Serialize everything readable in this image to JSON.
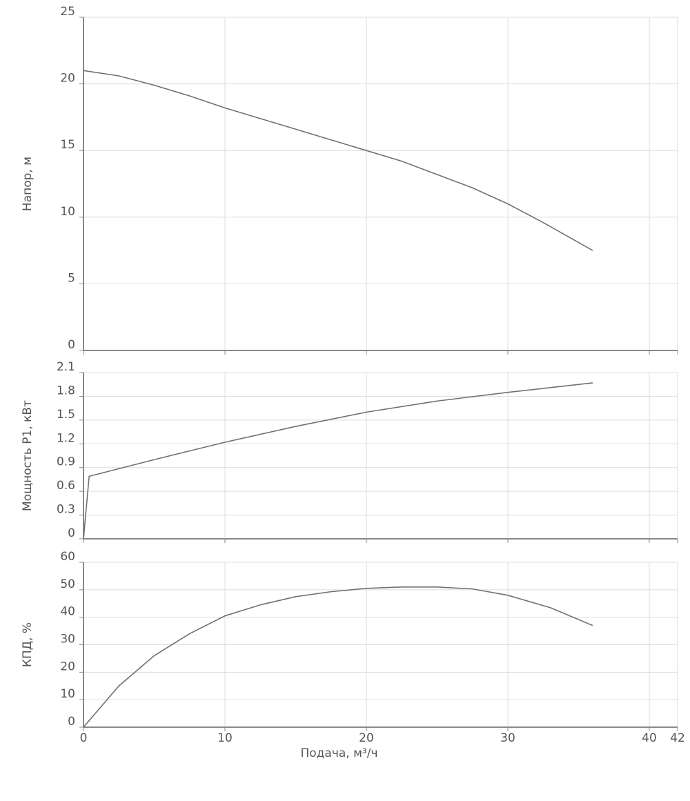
{
  "chart_data": [
    {
      "type": "line",
      "y_label": "Напор, м",
      "x": [
        0,
        2.5,
        5,
        7.5,
        10,
        12.5,
        15,
        17.5,
        20,
        22.5,
        25,
        27.5,
        30,
        32.5,
        36
      ],
      "values": [
        21,
        20.6,
        19.9,
        19.1,
        18.2,
        17.4,
        16.6,
        15.8,
        15,
        14.2,
        13.2,
        12.2,
        11,
        9.6,
        7.5
      ],
      "color": "#707070",
      "xlim": [
        0,
        42
      ],
      "xticks": [
        0,
        10,
        20,
        30,
        40,
        42
      ],
      "ylim": [
        0,
        25
      ],
      "yticks": [
        0,
        5,
        10,
        15,
        20,
        25
      ],
      "grid": true
    },
    {
      "type": "line",
      "y_label": "Мощность P1, кВт",
      "x": [
        0,
        0.4,
        5,
        10,
        15,
        20,
        25,
        30,
        36
      ],
      "values": [
        0,
        0.79,
        1.0,
        1.22,
        1.42,
        1.6,
        1.74,
        1.85,
        1.97
      ],
      "color": "#707070",
      "xlim": [
        0,
        42
      ],
      "xticks": [
        0,
        10,
        20,
        30,
        40,
        42
      ],
      "ylim": [
        0,
        2.1
      ],
      "yticks": [
        0,
        0.3,
        0.6,
        0.9,
        1.2,
        1.5,
        1.8,
        2.1
      ],
      "grid": true
    },
    {
      "type": "line",
      "y_label": "КПД, %",
      "x_label": "Подача, м³/ч",
      "x": [
        0,
        2.5,
        5,
        7.5,
        10,
        12.5,
        15,
        17.5,
        20,
        22.5,
        25,
        27.5,
        30,
        33,
        36
      ],
      "values": [
        0,
        15,
        26,
        34,
        40.5,
        44.5,
        47.5,
        49.3,
        50.5,
        51,
        51,
        50.3,
        48,
        43.5,
        37
      ],
      "color": "#707070",
      "xlim": [
        0,
        42
      ],
      "xticks": [
        0,
        10,
        20,
        30,
        40,
        42
      ],
      "ylim": [
        0,
        60
      ],
      "yticks": [
        0,
        10,
        20,
        30,
        40,
        50,
        60
      ],
      "grid": true
    }
  ]
}
